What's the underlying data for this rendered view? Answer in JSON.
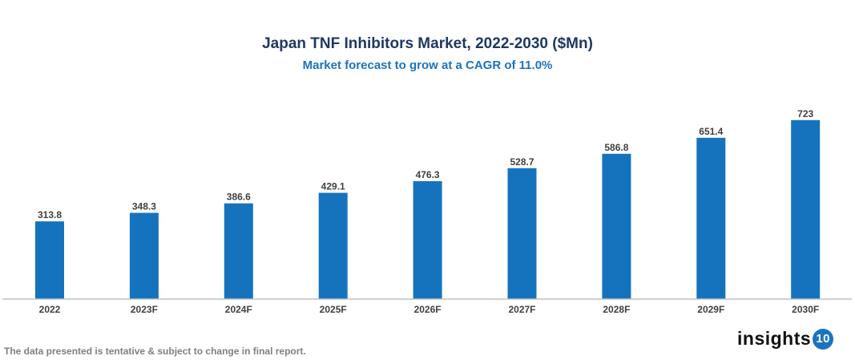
{
  "chart_data": {
    "type": "bar",
    "title": "Japan TNF Inhibitors Market, 2022-2030 ($Mn)",
    "subtitle": "Market forecast to grow at a CAGR of 11.0%",
    "categories": [
      "2022",
      "2023F",
      "2024F",
      "2025F",
      "2026F",
      "2027F",
      "2028F",
      "2029F",
      "2030F"
    ],
    "values": [
      313.8,
      348.3,
      386.6,
      429.1,
      476.3,
      528.7,
      586.8,
      651.4,
      723
    ],
    "value_labels": [
      "313.8",
      "348.3",
      "386.6",
      "429.1",
      "476.3",
      "528.7",
      "586.8",
      "651.4",
      "723"
    ],
    "xlabel": "",
    "ylabel": "",
    "ylim": [
      0,
      800
    ],
    "grid": false,
    "bar_color": "#1573be"
  },
  "footer": {
    "note": "The data presented is tentative & subject to change in final report."
  },
  "logo": {
    "text": "insights",
    "number": "10"
  }
}
